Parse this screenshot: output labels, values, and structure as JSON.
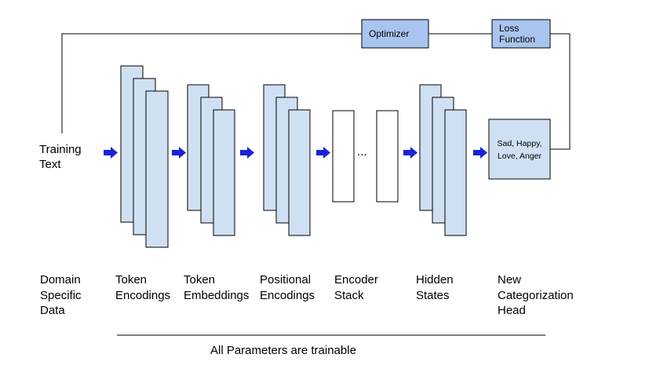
{
  "diagram": {
    "input_label": "Training\nText",
    "optimizer_label": "Optimizer",
    "loss_label": "Loss\nFunction",
    "head_label": "Sad, Happy,\nLove, Anger",
    "ellipsis": "...",
    "footer_label": "All Parameters are trainable",
    "stages": [
      "Domain\nSpecific\nData",
      "Token\nEncodings",
      "Token\nEmbeddings",
      "Positional\nEncodings",
      "Encoder\nStack",
      "Hidden\nStates",
      "New\nCategorization\nHead"
    ],
    "colors": {
      "layer_fill": "#cfe0f2",
      "optimizer_fill": "#a9c4ef",
      "head_fill": "#cfe0f2",
      "arrow": "#1a22d6",
      "line": "#000000"
    }
  }
}
